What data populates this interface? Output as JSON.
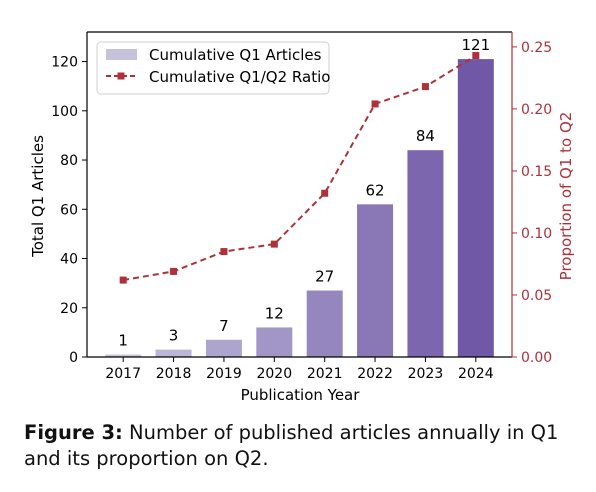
{
  "chart_data": {
    "type": "bar",
    "categories": [
      "2017",
      "2018",
      "2019",
      "2020",
      "2021",
      "2022",
      "2023",
      "2024"
    ],
    "bar_series": {
      "name": "Cumulative Q1 Articles",
      "values": [
        1,
        3,
        7,
        12,
        27,
        62,
        84,
        121
      ],
      "labels": [
        "1",
        "3",
        "7",
        "12",
        "27",
        "62",
        "84",
        "121"
      ]
    },
    "line_series": {
      "name": "Cumulative Q1/Q2 Ratio",
      "values": [
        0.062,
        0.069,
        0.085,
        0.091,
        0.132,
        0.204,
        0.218,
        0.243
      ],
      "color": "#b0303a"
    },
    "xlabel": "Publication Year",
    "ylabel": "Total Q1 Articles",
    "ylabel_right": "Proportion of Q1 to Q2",
    "ylim": [
      0,
      132
    ],
    "ylim_right": [
      0,
      0.262
    ],
    "yticks": [
      "0",
      "20",
      "40",
      "60",
      "80",
      "100",
      "120"
    ],
    "yticks_right": [
      "0.00",
      "0.05",
      "0.10",
      "0.15",
      "0.20",
      "0.25"
    ],
    "legend_position": "top-left",
    "grid": false
  },
  "caption": {
    "label": "Figure 3:",
    "text": "Number of published articles annually in Q1 and its proportion on Q2."
  }
}
